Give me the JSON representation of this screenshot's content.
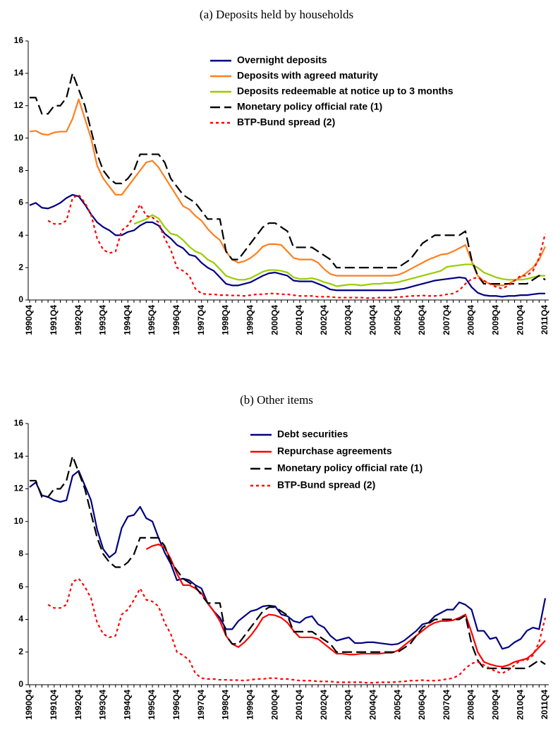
{
  "chart_data": [
    {
      "type": "line",
      "title": "(a) Deposits held by households",
      "categories": [
        "1990Q4",
        null,
        null,
        null,
        "1991Q4",
        null,
        null,
        null,
        "1992Q4",
        null,
        null,
        null,
        "1993Q4",
        null,
        null,
        null,
        "1994Q4",
        null,
        null,
        null,
        "1995Q4",
        null,
        null,
        null,
        "1996Q4",
        null,
        null,
        null,
        "1997Q4",
        null,
        null,
        null,
        "1998Q4",
        null,
        null,
        null,
        "1999Q4",
        null,
        null,
        null,
        "2000Q4",
        null,
        null,
        null,
        "2001Q4",
        null,
        null,
        null,
        "2002Q4",
        null,
        null,
        null,
        "2003Q4",
        null,
        null,
        null,
        "2004Q4",
        null,
        null,
        null,
        "2005Q4",
        null,
        null,
        null,
        "2006Q4",
        null,
        null,
        null,
        "2007Q4",
        null,
        null,
        null,
        "2008Q4",
        null,
        null,
        null,
        "2009Q4",
        null,
        null,
        null,
        "2010Q4",
        null,
        null,
        null,
        "2011Q4"
      ],
      "ylim": [
        0,
        16
      ],
      "yticks": [
        0,
        2,
        4,
        6,
        8,
        10,
        12,
        14,
        16
      ],
      "series": [
        {
          "name": "Overnight deposits",
          "color": "#000080",
          "dash": "solid",
          "values": [
            5.85,
            6.0,
            5.7,
            5.65,
            5.8,
            6.0,
            6.3,
            6.5,
            6.4,
            5.9,
            5.3,
            4.8,
            4.5,
            4.3,
            4.0,
            4.0,
            4.2,
            4.3,
            4.6,
            4.8,
            4.8,
            4.6,
            4.1,
            3.8,
            3.4,
            3.2,
            2.8,
            2.7,
            2.3,
            2.0,
            1.8,
            1.4,
            1.0,
            0.9,
            0.9,
            1.0,
            1.1,
            1.3,
            1.5,
            1.65,
            1.7,
            1.6,
            1.5,
            1.2,
            1.15,
            1.15,
            1.15,
            1.0,
            0.85,
            0.65,
            0.6,
            0.6,
            0.6,
            0.6,
            0.6,
            0.6,
            0.6,
            0.6,
            0.6,
            0.6,
            0.65,
            0.7,
            0.8,
            0.9,
            1.0,
            1.1,
            1.2,
            1.25,
            1.3,
            1.35,
            1.4,
            1.35,
            0.8,
            0.45,
            0.3,
            0.25,
            0.25,
            0.2,
            0.25,
            0.25,
            0.3,
            0.3,
            0.35,
            0.4,
            0.4
          ]
        },
        {
          "name": "Deposits with agreed maturity",
          "color": "#ff7f1f",
          "dash": "solid",
          "values": [
            10.4,
            10.45,
            10.25,
            10.2,
            10.35,
            10.4,
            10.4,
            11.2,
            12.4,
            11.2,
            10.0,
            8.3,
            7.5,
            7.0,
            6.5,
            6.5,
            7.0,
            7.5,
            8.0,
            8.5,
            8.6,
            8.2,
            7.6,
            7.0,
            6.4,
            5.8,
            5.6,
            5.2,
            4.9,
            4.4,
            4.0,
            3.7,
            3.0,
            2.5,
            2.3,
            2.4,
            2.6,
            2.9,
            3.3,
            3.45,
            3.45,
            3.4,
            3.0,
            2.6,
            2.5,
            2.5,
            2.5,
            2.3,
            1.9,
            1.6,
            1.5,
            1.5,
            1.5,
            1.5,
            1.5,
            1.5,
            1.5,
            1.5,
            1.5,
            1.5,
            1.55,
            1.7,
            1.9,
            2.1,
            2.3,
            2.5,
            2.65,
            2.8,
            2.85,
            3.0,
            3.2,
            3.4,
            2.4,
            1.5,
            1.15,
            1.0,
            0.9,
            0.9,
            1.0,
            1.2,
            1.4,
            1.7,
            2.0,
            2.5,
            3.3
          ]
        },
        {
          "name": "Deposits redeemable at notice up to 3 months",
          "color": "#99cc00",
          "dash": "solid",
          "values": [
            null,
            null,
            null,
            null,
            null,
            null,
            null,
            null,
            null,
            null,
            null,
            null,
            null,
            null,
            null,
            null,
            null,
            4.7,
            4.85,
            5.0,
            5.25,
            5.05,
            4.5,
            4.1,
            4.0,
            3.7,
            3.3,
            3.0,
            2.85,
            2.5,
            2.3,
            1.9,
            1.5,
            1.35,
            1.25,
            1.25,
            1.35,
            1.55,
            1.75,
            1.85,
            1.85,
            1.8,
            1.7,
            1.4,
            1.3,
            1.3,
            1.35,
            1.25,
            1.1,
            1.0,
            0.85,
            0.9,
            0.95,
            0.95,
            0.9,
            0.95,
            1.0,
            1.0,
            1.05,
            1.05,
            1.1,
            1.2,
            1.3,
            1.4,
            1.5,
            1.6,
            1.7,
            1.8,
            2.05,
            2.1,
            2.15,
            2.2,
            2.2,
            2.0,
            1.7,
            1.55,
            1.4,
            1.3,
            1.25,
            1.25,
            1.25,
            1.3,
            1.4,
            1.5,
            1.5
          ]
        },
        {
          "name": "Monetary policy official rate (1)",
          "color": "#000000",
          "dash": "dashed",
          "values": [
            12.5,
            12.5,
            11.5,
            11.5,
            12,
            12,
            12.5,
            14,
            13,
            12,
            10.5,
            9,
            8,
            7.5,
            7.2,
            7.2,
            7.5,
            8,
            9,
            9,
            9,
            9,
            8.5,
            7.5,
            7,
            6.5,
            6.25,
            6,
            5.5,
            5,
            5,
            5,
            3,
            2.5,
            2.5,
            3,
            3.5,
            4,
            4.5,
            4.75,
            4.75,
            4.5,
            4.25,
            3.25,
            3.25,
            3.25,
            3.25,
            3.0,
            2.75,
            2.5,
            2.0,
            2.0,
            2,
            2,
            2,
            2,
            2,
            2,
            2,
            2,
            2,
            2.25,
            2.5,
            3,
            3.5,
            3.75,
            4,
            4,
            4,
            4,
            4,
            4.25,
            2.5,
            1.5,
            1,
            1,
            1,
            1,
            1,
            1,
            1,
            1,
            1.25,
            1.5,
            1.25
          ]
        },
        {
          "name": "BTP-Bund spread (2)",
          "color": "#ff0000",
          "dash": "dotted",
          "values": [
            null,
            null,
            null,
            4.9,
            4.7,
            4.7,
            4.9,
            6.3,
            6.5,
            6.0,
            5.3,
            3.8,
            3.1,
            2.9,
            3.0,
            4.3,
            4.6,
            5.2,
            5.9,
            5.2,
            5.1,
            4.8,
            3.8,
            3.1,
            2.0,
            1.8,
            1.5,
            0.7,
            0.4,
            0.35,
            0.35,
            0.3,
            0.3,
            0.28,
            0.28,
            0.25,
            0.3,
            0.35,
            0.35,
            0.4,
            0.4,
            0.35,
            0.35,
            0.3,
            0.25,
            0.25,
            0.25,
            0.2,
            0.2,
            0.2,
            0.15,
            0.15,
            0.15,
            0.15,
            0.15,
            0.12,
            0.12,
            0.15,
            0.15,
            0.15,
            0.18,
            0.2,
            0.25,
            0.25,
            0.28,
            0.25,
            0.25,
            0.28,
            0.35,
            0.4,
            0.6,
            1.0,
            1.3,
            1.4,
            1.2,
            1.0,
            0.8,
            0.7,
            0.9,
            1.2,
            1.5,
            1.5,
            1.8,
            2.6,
            4.1
          ]
        }
      ]
    },
    {
      "type": "line",
      "title": "(b) Other items",
      "categories": [
        "1990Q4",
        null,
        null,
        null,
        "1991Q4",
        null,
        null,
        null,
        "1992Q4",
        null,
        null,
        null,
        "1993Q4",
        null,
        null,
        null,
        "1994Q4",
        null,
        null,
        null,
        "1995Q4",
        null,
        null,
        null,
        "1996Q4",
        null,
        null,
        null,
        "1997Q4",
        null,
        null,
        null,
        "1998Q4",
        null,
        null,
        null,
        "1999Q4",
        null,
        null,
        null,
        "2000Q4",
        null,
        null,
        null,
        "2001Q4",
        null,
        null,
        null,
        "2002Q4",
        null,
        null,
        null,
        "2003Q4",
        null,
        null,
        null,
        "2004Q4",
        null,
        null,
        null,
        "2005Q4",
        null,
        null,
        null,
        "2006Q4",
        null,
        null,
        null,
        "2007Q4",
        null,
        null,
        null,
        "2008Q4",
        null,
        null,
        null,
        "2009Q4",
        null,
        null,
        null,
        "2010Q4",
        null,
        null,
        null,
        "2011Q4"
      ],
      "ylim": [
        0,
        16
      ],
      "yticks": [
        0,
        2,
        4,
        6,
        8,
        10,
        12,
        14,
        16
      ],
      "series": [
        {
          "name": "Debt securities",
          "color": "#000080",
          "dash": "solid",
          "values": [
            12.1,
            12.4,
            11.6,
            11.5,
            11.3,
            11.2,
            11.3,
            12.8,
            13.1,
            12.2,
            11.3,
            9.5,
            8.3,
            7.8,
            8.1,
            9.6,
            10.3,
            10.4,
            10.9,
            10.2,
            10.0,
            9.0,
            8.1,
            7.4,
            6.4,
            6.5,
            6.4,
            6.1,
            5.9,
            5.0,
            4.5,
            4.1,
            3.4,
            3.4,
            3.9,
            4.2,
            4.5,
            4.6,
            4.8,
            4.85,
            4.8,
            4.3,
            4.2,
            3.9,
            3.8,
            4.1,
            4.2,
            3.7,
            3.5,
            3.0,
            2.7,
            2.8,
            2.9,
            2.55,
            2.55,
            2.6,
            2.6,
            2.55,
            2.5,
            2.45,
            2.5,
            2.7,
            3.0,
            3.3,
            3.7,
            3.8,
            4.2,
            4.4,
            4.6,
            4.6,
            5.05,
            4.9,
            4.6,
            3.3,
            3.3,
            2.8,
            2.9,
            2.2,
            2.3,
            2.6,
            2.8,
            3.3,
            3.5,
            3.4,
            5.3
          ]
        },
        {
          "name": "Repurchase agreements",
          "color": "#ff0000",
          "dash": "solid",
          "values": [
            null,
            null,
            null,
            null,
            null,
            null,
            null,
            null,
            null,
            null,
            null,
            null,
            null,
            null,
            null,
            null,
            null,
            null,
            null,
            8.3,
            8.5,
            8.6,
            8.4,
            7.7,
            6.8,
            6.1,
            6.1,
            5.9,
            5.6,
            5.0,
            4.5,
            3.9,
            3.0,
            2.5,
            2.3,
            2.6,
            3.0,
            3.5,
            4.1,
            4.3,
            4.25,
            4.1,
            3.8,
            3.3,
            2.9,
            2.9,
            2.9,
            2.8,
            2.5,
            2.2,
            1.9,
            1.9,
            1.85,
            1.85,
            1.9,
            1.9,
            1.9,
            1.9,
            1.95,
            1.95,
            2.1,
            2.4,
            2.7,
            3.0,
            3.3,
            3.6,
            3.8,
            3.9,
            3.9,
            3.95,
            4.1,
            4.3,
            3.2,
            2.0,
            1.4,
            1.25,
            1.15,
            1.1,
            1.2,
            1.4,
            1.5,
            1.6,
            1.9,
            2.3,
            2.7
          ]
        },
        {
          "name": "Monetary policy official rate (1)",
          "color": "#000000",
          "dash": "dashed",
          "values": [
            12.5,
            12.5,
            11.5,
            11.5,
            12,
            12,
            12.5,
            14,
            13,
            12,
            10.5,
            9,
            8,
            7.5,
            7.2,
            7.2,
            7.5,
            8,
            9,
            9,
            9,
            9,
            8.5,
            7.5,
            7,
            6.5,
            6.25,
            6,
            5.5,
            5,
            5,
            5,
            3,
            2.5,
            2.5,
            3,
            3.5,
            4,
            4.5,
            4.75,
            4.75,
            4.5,
            4.25,
            3.25,
            3.25,
            3.25,
            3.25,
            3.0,
            2.75,
            2.5,
            2.0,
            2.0,
            2,
            2,
            2,
            2,
            2,
            2,
            2,
            2,
            2,
            2.25,
            2.5,
            3,
            3.5,
            3.75,
            4,
            4,
            4,
            4,
            4,
            4.25,
            2.5,
            1.5,
            1,
            1,
            1,
            1,
            1,
            1,
            1,
            1,
            1.25,
            1.5,
            1.25
          ]
        },
        {
          "name": "BTP-Bund spread (2)",
          "color": "#ff0000",
          "dash": "dotted",
          "values": [
            null,
            null,
            null,
            4.9,
            4.7,
            4.7,
            4.9,
            6.3,
            6.5,
            6.0,
            5.3,
            3.8,
            3.1,
            2.9,
            3.0,
            4.3,
            4.6,
            5.2,
            5.9,
            5.2,
            5.1,
            4.8,
            3.8,
            3.1,
            2.0,
            1.8,
            1.5,
            0.7,
            0.4,
            0.35,
            0.35,
            0.3,
            0.3,
            0.28,
            0.28,
            0.25,
            0.3,
            0.35,
            0.35,
            0.4,
            0.4,
            0.35,
            0.35,
            0.3,
            0.25,
            0.25,
            0.25,
            0.2,
            0.2,
            0.2,
            0.15,
            0.15,
            0.15,
            0.15,
            0.15,
            0.12,
            0.12,
            0.15,
            0.15,
            0.15,
            0.18,
            0.2,
            0.25,
            0.25,
            0.28,
            0.25,
            0.25,
            0.28,
            0.35,
            0.4,
            0.6,
            1.0,
            1.3,
            1.4,
            1.2,
            1.0,
            0.8,
            0.7,
            0.9,
            1.2,
            1.5,
            1.5,
            1.8,
            2.6,
            4.1
          ]
        }
      ]
    }
  ]
}
